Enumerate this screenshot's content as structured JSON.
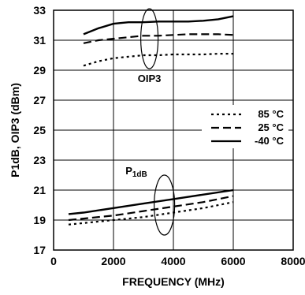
{
  "chart_data": {
    "type": "line",
    "xlabel": "FREQUENCY (MHz)",
    "ylabel": "P1dB, OIP3 (dBm)",
    "xlim": [
      0,
      8000
    ],
    "ylim": [
      17,
      33
    ],
    "xticks": [
      0,
      2000,
      4000,
      6000,
      8000
    ],
    "yticks": [
      17,
      19,
      21,
      23,
      25,
      27,
      29,
      31,
      33
    ],
    "grid": true,
    "legend_position": "right",
    "series": [
      {
        "name": "85 °C",
        "group": "OIP3",
        "dash": "dotted",
        "x": [
          1000,
          1500,
          2000,
          2500,
          3000,
          3500,
          4000,
          4500,
          5000,
          5500,
          6000
        ],
        "y": [
          29.3,
          29.6,
          29.8,
          29.9,
          30.0,
          30.0,
          30.05,
          30.05,
          30.05,
          30.1,
          30.1
        ]
      },
      {
        "name": "25 °C",
        "group": "OIP3",
        "dash": "dashed",
        "x": [
          1000,
          1500,
          2000,
          2500,
          3000,
          3500,
          4000,
          4500,
          5000,
          5500,
          6000
        ],
        "y": [
          30.8,
          31.0,
          31.1,
          31.2,
          31.3,
          31.3,
          31.35,
          31.4,
          31.4,
          31.4,
          31.35
        ]
      },
      {
        "name": "-40 °C",
        "group": "OIP3",
        "dash": "solid",
        "x": [
          1000,
          1500,
          2000,
          2500,
          3000,
          3500,
          4000,
          4500,
          5000,
          5500,
          6000
        ],
        "y": [
          31.4,
          31.8,
          32.1,
          32.2,
          32.2,
          32.25,
          32.25,
          32.25,
          32.3,
          32.4,
          32.6
        ]
      },
      {
        "name": "85 °C",
        "group": "P1dB",
        "dash": "dotted",
        "x": [
          500,
          1000,
          2000,
          3000,
          4000,
          5000,
          6000
        ],
        "y": [
          18.7,
          18.8,
          19.0,
          19.2,
          19.5,
          19.8,
          20.2
        ]
      },
      {
        "name": "25 °C",
        "group": "P1dB",
        "dash": "dashed",
        "x": [
          500,
          1000,
          2000,
          3000,
          4000,
          5000,
          6000
        ],
        "y": [
          19.0,
          19.1,
          19.3,
          19.6,
          19.9,
          20.2,
          20.6
        ]
      },
      {
        "name": "-40 °C",
        "group": "P1dB",
        "dash": "solid",
        "x": [
          500,
          1000,
          2000,
          3000,
          4000,
          5000,
          6000
        ],
        "y": [
          19.4,
          19.5,
          19.8,
          20.1,
          20.4,
          20.7,
          21.0
        ]
      }
    ],
    "legend": [
      {
        "label": "85 °C",
        "dash": "dotted"
      },
      {
        "label": "25 °C",
        "dash": "dashed"
      },
      {
        "label": "-40 °C",
        "dash": "solid"
      }
    ],
    "annotations": {
      "oip3_label": "OIP3",
      "p1db_label_main": "P",
      "p1db_label_sub": "1dB"
    },
    "colors": {
      "line": "#000000",
      "grid": "#000000",
      "background": "#ffffff"
    }
  }
}
